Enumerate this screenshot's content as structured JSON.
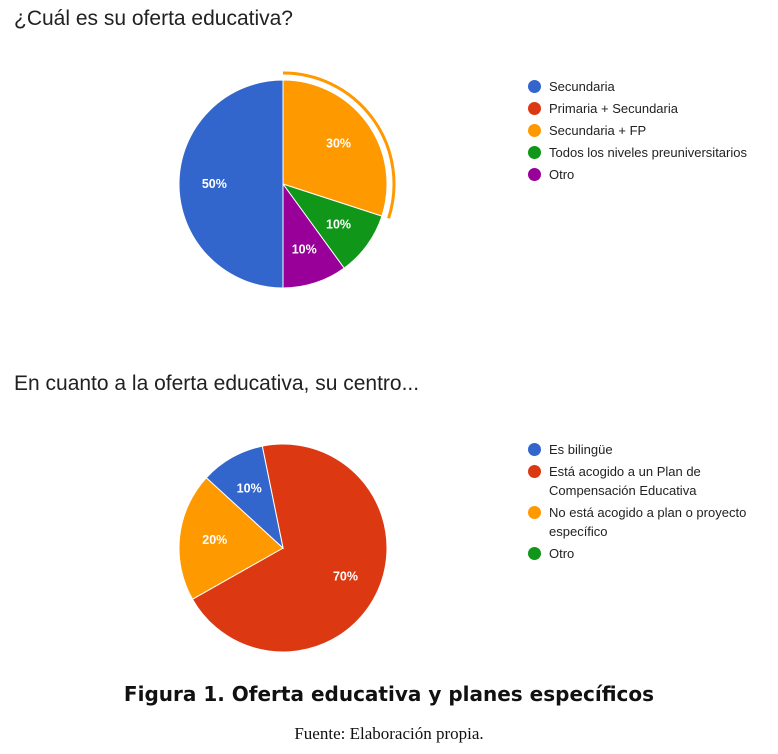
{
  "chart_data": [
    {
      "type": "pie",
      "title": "¿Cuál es su oferta educativa?",
      "legend_position": "right",
      "highlighted_slice": "Secundaria + FP",
      "slices": [
        {
          "label": "Secundaria",
          "value": 50,
          "display": "50%",
          "color": "#3366cc"
        },
        {
          "label": "Primaria + Secundaria",
          "value": 0,
          "display": "",
          "color": "#dc3912"
        },
        {
          "label": "Secundaria + FP",
          "value": 30,
          "display": "30%",
          "color": "#ff9900"
        },
        {
          "label": "Todos los niveles preuniversitarios",
          "value": 10,
          "display": "10%",
          "color": "#109618"
        },
        {
          "label": "Otro",
          "value": 10,
          "display": "10%",
          "color": "#990099"
        }
      ]
    },
    {
      "type": "pie",
      "title": "En cuanto a la oferta educativa, su centro...",
      "legend_position": "right",
      "slices": [
        {
          "label": "Es bilingüe",
          "value": 10,
          "display": "10%",
          "color": "#3366cc"
        },
        {
          "label": "Está acogido a un Plan de Compensación Educativa",
          "value": 70,
          "display": "70%",
          "color": "#dc3912"
        },
        {
          "label": "No está acogido a plan o proyecto específico",
          "value": 20,
          "display": "20%",
          "color": "#ff9900"
        },
        {
          "label": "Otro",
          "value": 0,
          "display": "",
          "color": "#109618"
        }
      ]
    }
  ],
  "figure": {
    "caption": "Figura 1. Oferta educativa y planes específicos",
    "source": "Fuente: Elaboración propia."
  }
}
